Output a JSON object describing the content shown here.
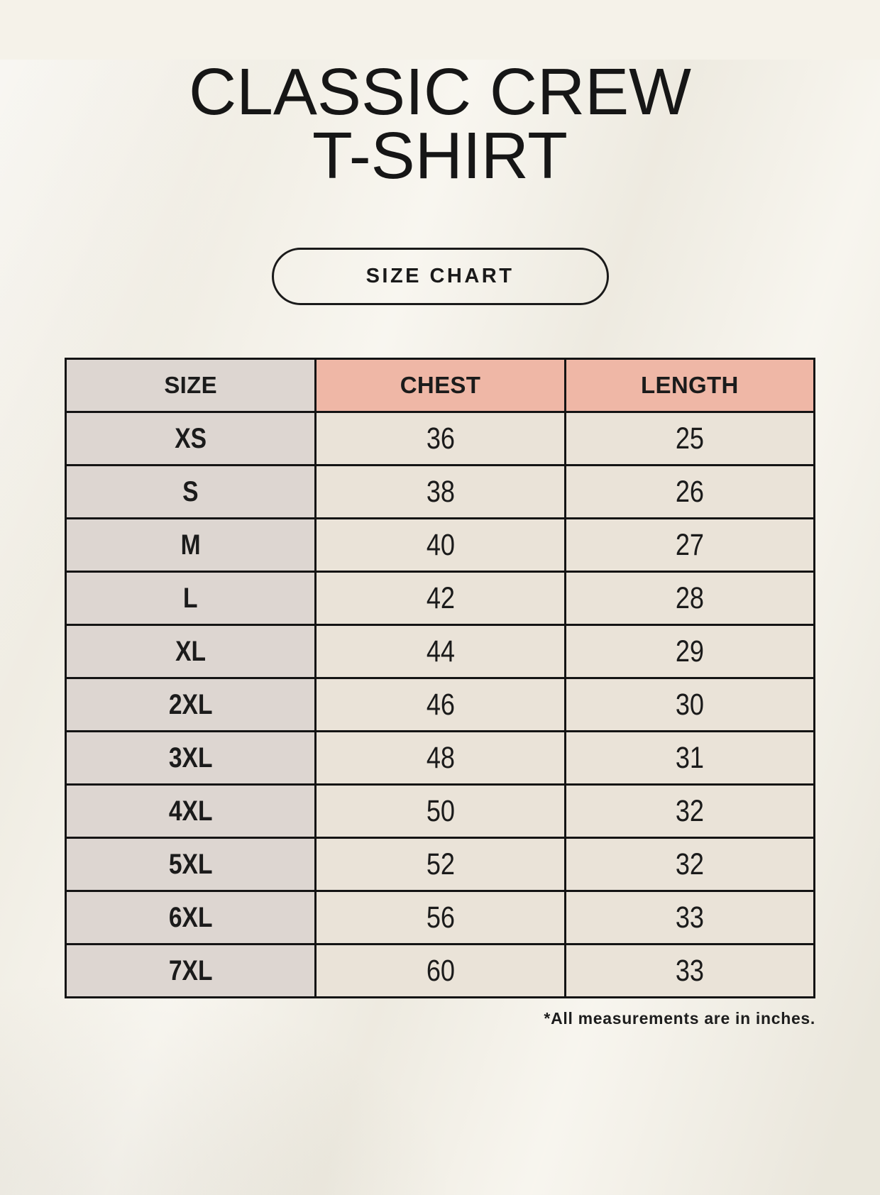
{
  "title": {
    "line1": "CLASSIC CREW",
    "line2": "T-SHIRT"
  },
  "badge": {
    "label": "SIZE CHART"
  },
  "size_table": {
    "headers": [
      "SIZE",
      "CHEST",
      "LENGTH"
    ],
    "rows": [
      [
        "XS",
        "36",
        "25"
      ],
      [
        "S",
        "38",
        "26"
      ],
      [
        "M",
        "40",
        "27"
      ],
      [
        "L",
        "42",
        "28"
      ],
      [
        "XL",
        "44",
        "29"
      ],
      [
        "2XL",
        "46",
        "30"
      ],
      [
        "3XL",
        "48",
        "31"
      ],
      [
        "4XL",
        "50",
        "32"
      ],
      [
        "5XL",
        "52",
        "32"
      ],
      [
        "6XL",
        "56",
        "33"
      ],
      [
        "7XL",
        "60",
        "33"
      ]
    ]
  },
  "footnote": "*All measurements are in inches.",
  "colors": {
    "background": "#f5f2e9",
    "size_column_bg": "#ddd6d1",
    "measure_header_bg": "#efb7a6",
    "data_cell_bg": "#eae3d8",
    "border": "#141414",
    "text": "#1b1b1b"
  },
  "chart_data": {
    "type": "table",
    "title": "CLASSIC CREW T-SHIRT",
    "columns": [
      "SIZE",
      "CHEST",
      "LENGTH"
    ],
    "rows": [
      [
        "XS",
        36,
        25
      ],
      [
        "S",
        38,
        26
      ],
      [
        "M",
        40,
        27
      ],
      [
        "L",
        42,
        28
      ],
      [
        "XL",
        44,
        29
      ],
      [
        "2XL",
        46,
        30
      ],
      [
        "3XL",
        48,
        31
      ],
      [
        "4XL",
        50,
        32
      ],
      [
        "5XL",
        52,
        32
      ],
      [
        "6XL",
        56,
        33
      ],
      [
        "7XL",
        60,
        33
      ]
    ],
    "units": "inches"
  }
}
